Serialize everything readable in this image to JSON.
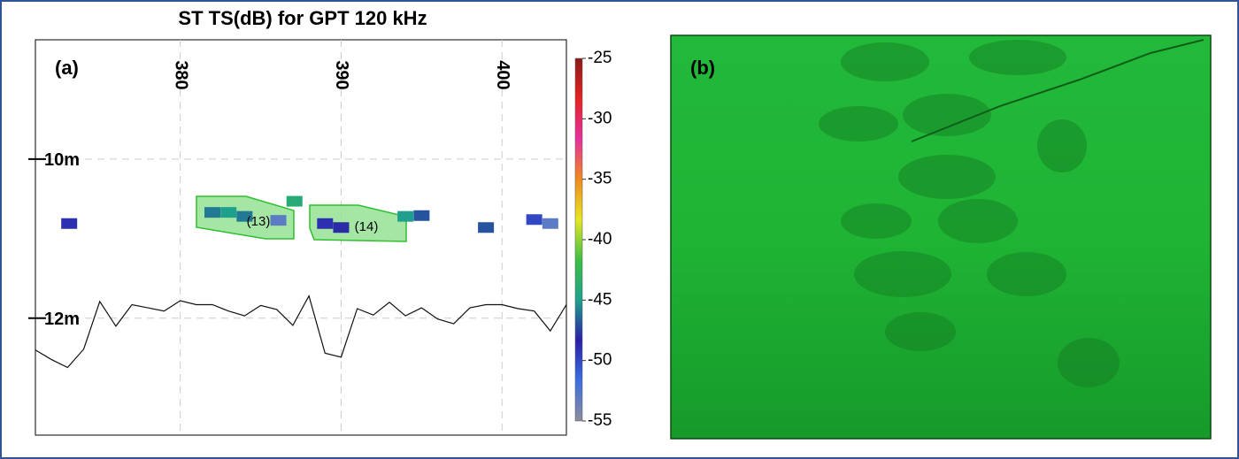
{
  "chart_data": {
    "type": "scatter",
    "title": "ST TS(dB) for GPT 120 kHz",
    "panel_label": "(a)",
    "xlim": [
      371,
      404
    ],
    "xticks": [
      380,
      390,
      400
    ],
    "ylim": [
      8.5,
      13.47
    ],
    "y_inverted": true,
    "yticks": [
      {
        "value": 10,
        "label": "10m"
      },
      {
        "value": 12,
        "label": "12m"
      }
    ],
    "grid": true,
    "targets": {
      "x": [
        373.1,
        382.0,
        383.0,
        384.0,
        386.1,
        387.1,
        389.0,
        390.0,
        394.0,
        395.0,
        399.0,
        402.0,
        403.0
      ],
      "depth": [
        10.81,
        10.67,
        10.67,
        10.72,
        10.77,
        10.53,
        10.81,
        10.86,
        10.72,
        10.71,
        10.86,
        10.76,
        10.81
      ],
      "ts": [
        -49,
        -46,
        -45,
        -46,
        -53,
        -44,
        -49,
        -48,
        -45,
        -47,
        -47,
        -50,
        -53
      ]
    },
    "seabed": {
      "x": [
        371,
        372,
        373,
        374,
        375,
        376,
        377,
        378,
        379,
        380,
        381,
        382,
        383,
        384,
        385,
        386,
        387,
        388,
        389,
        390,
        391,
        392,
        393,
        394,
        395,
        396,
        397,
        398,
        399,
        400,
        401,
        402,
        403,
        404
      ],
      "depth": [
        12.4,
        12.52,
        12.62,
        12.39,
        11.79,
        12.1,
        11.83,
        11.87,
        11.91,
        11.78,
        11.83,
        11.83,
        11.91,
        11.97,
        11.84,
        11.89,
        12.09,
        11.72,
        12.44,
        12.49,
        11.88,
        11.96,
        11.8,
        11.97,
        11.87,
        12.01,
        12.07,
        11.87,
        11.83,
        11.83,
        11.88,
        11.91,
        12.16,
        11.83
      ]
    },
    "annotations": [
      "(13)",
      "(14)"
    ],
    "colorbar": {
      "lim": [
        -55,
        -25
      ],
      "ticks": [
        -25,
        -30,
        -35,
        -40,
        -45,
        -50,
        -55
      ],
      "colormap": [
        "#8e8c9c",
        "#3a6fe0",
        "#2a1fa8",
        "#1fa08c",
        "#3cc043",
        "#e6e624",
        "#f08a1e",
        "#e6309e",
        "#e42222",
        "#8b1a1a"
      ]
    },
    "photo_panel": {
      "label": "(b)"
    }
  }
}
